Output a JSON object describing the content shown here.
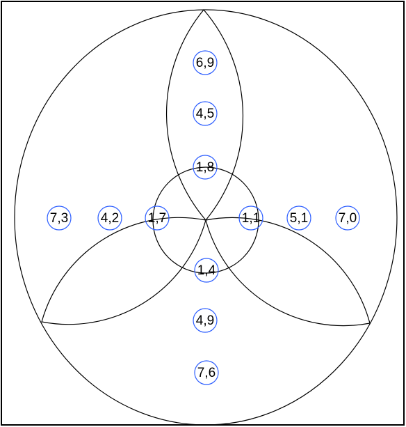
{
  "labels": [
    "6,9",
    "4,5",
    "1,8",
    "7,3",
    "4,2",
    "1,7",
    "1,1",
    "5,1",
    "7,0",
    "1,4",
    "4,9",
    "7,6"
  ]
}
